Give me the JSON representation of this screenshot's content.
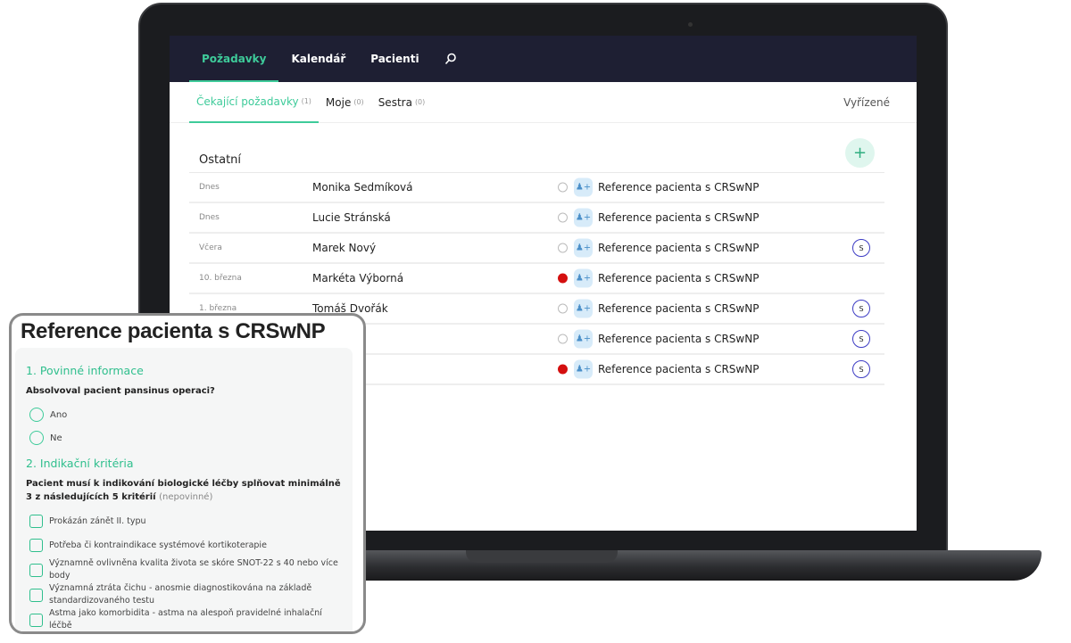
{
  "nav": {
    "items": [
      "Požadavky",
      "Kalendář",
      "Pacienti"
    ],
    "active": 0,
    "search_icon": "search-icon"
  },
  "tabs": [
    {
      "label": "Čekající požadavky",
      "count": "(1)"
    },
    {
      "label": "Moje",
      "count": "(0)"
    },
    {
      "label": "Sestra",
      "count": "(0)"
    }
  ],
  "tab_right": "Vyřízené",
  "section": "Ostatní",
  "add_label": "+",
  "rows": [
    {
      "date": "Dnes",
      "name": "Monika Sedmíková",
      "flag": false,
      "title": "Reference pacienta s CRSwNP",
      "badge": ""
    },
    {
      "date": "Dnes",
      "name": "Lucie Stránská",
      "flag": false,
      "title": "Reference pacienta s CRSwNP",
      "badge": ""
    },
    {
      "date": "Včera",
      "name": "Marek Nový",
      "flag": false,
      "title": "Reference pacienta s CRSwNP",
      "badge": "S"
    },
    {
      "date": "10. března",
      "name": "Markéta Výborná",
      "flag": true,
      "title": "Reference pacienta s CRSwNP",
      "badge": ""
    },
    {
      "date": "1. března",
      "name": "Tomáš Dvořák",
      "flag": false,
      "title": "Reference pacienta s CRSwNP",
      "badge": "S"
    },
    {
      "date": "",
      "name": "",
      "flag": false,
      "title": "Reference pacienta s CRSwNP",
      "badge": "S"
    },
    {
      "date": "",
      "name": "",
      "flag": true,
      "title": "Reference pacienta s CRSwNP",
      "badge": "S"
    }
  ],
  "colors": {
    "accent": "#3ecb9a",
    "nav_bg": "#1e1f33",
    "flag_red": "#d40f0f",
    "badge": "#3d3cc4"
  },
  "card": {
    "title": "Reference pacienta s CRSwNP",
    "s1_title": "1. Povinné informace",
    "s1_question": "Absolvoval pacient pansinus operaci?",
    "s1_options": [
      "Ano",
      "Ne"
    ],
    "s2_title": "2. Indikační kritéria",
    "s2_question": "Pacient musí k indikování biologické léčby splňovat minimálně 3 z následujících 5 kritérií",
    "s2_optional": "(nepovinné)",
    "s2_options": [
      "Prokázán zánět II. typu",
      "Potřeba či kontraindikace systémové kortikoterapie",
      "Významně ovlivněna kvalita života se skóre SNOT-22 s 40 nebo více body",
      "Významná ztráta čichu - anosmie diagnostikována na základě standardizovaného testu",
      "Astma jako komorbidita - astma na alespoň pravidelné inhalační léčbě"
    ]
  }
}
